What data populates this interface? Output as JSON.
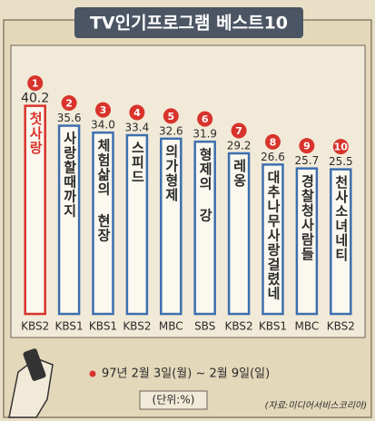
{
  "chart_data": {
    "type": "bar",
    "title": "TV인기프로그램 베스트10",
    "ranks": [
      "1",
      "2",
      "3",
      "4",
      "5",
      "6",
      "7",
      "8",
      "9",
      "10"
    ],
    "categories": [
      "첫사랑",
      "사랑할때까지",
      "체험삶의 현장",
      "스피드",
      "의가형제",
      "형제의 강",
      "레옹",
      "대추나무사랑걸렸네",
      "경찰청사람들",
      "천사소녀네티"
    ],
    "channels": [
      "KBS2",
      "KBS1",
      "KBS1",
      "KBS2",
      "MBC",
      "SBS",
      "KBS2",
      "KBS1",
      "MBC",
      "KBS2"
    ],
    "values": [
      40.2,
      35.6,
      34.0,
      33.4,
      32.6,
      31.9,
      29.2,
      26.6,
      25.7,
      25.5
    ],
    "value_labels": [
      "40.2",
      "35.6",
      "34.0",
      "33.4",
      "32.6",
      "31.9",
      "29.2",
      "26.6",
      "25.7",
      "25.5"
    ],
    "color": "#3d6fae",
    "highlight_color": "#d8332c",
    "date": "97년 2월 3일(월) ~ 2월 9일(일)",
    "unit": "(단위:%)",
    "source": "(자료:미디어서비스코리아)"
  }
}
